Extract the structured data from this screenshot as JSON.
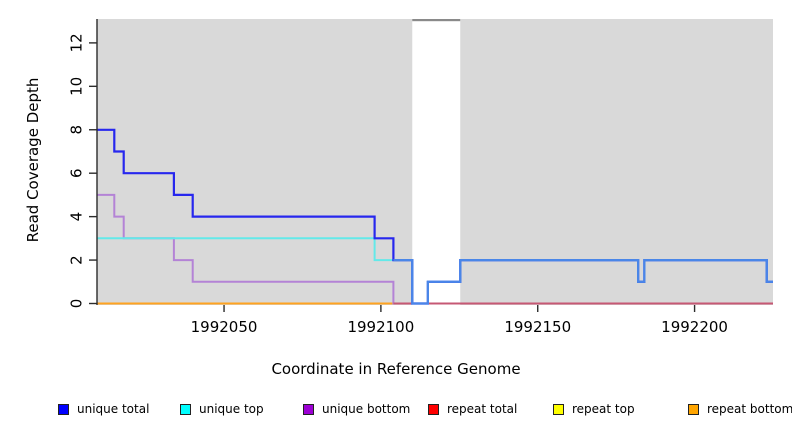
{
  "figure": {
    "x_axis_title": "Coordinate in Reference Genome",
    "y_axis_title": "Read Coverage Depth"
  },
  "chart_data": {
    "type": "line",
    "subtype": "step",
    "title": "",
    "xlabel": "Coordinate in Reference Genome",
    "ylabel": "Read Coverage Depth",
    "xlim": [
      1992009.5,
      1992225
    ],
    "ylim": [
      0,
      13.1
    ],
    "xticks": [
      1992050,
      1992100,
      1992150,
      1992200
    ],
    "yticks": [
      0,
      2,
      4,
      6,
      8,
      10,
      12
    ],
    "grid": false,
    "plot_bg": "#d9d9d9",
    "legend_position": "bottom",
    "masked_bands": [
      {
        "x0": 1992110,
        "x1": 1992125.3,
        "fill": "#ffffff",
        "top_line_color": "#8a8a8a",
        "note": "white band; clipped coverage marker at top"
      }
    ],
    "series": [
      {
        "name": "unique total",
        "legend_fill": "#0000ff",
        "line_color": "#2727ee",
        "steps": [
          [
            1992009.5,
            8
          ],
          [
            1992015,
            7
          ],
          [
            1992018,
            6
          ],
          [
            1992034,
            5
          ],
          [
            1992040,
            4
          ],
          [
            1992098,
            3
          ],
          [
            1992104,
            2
          ],
          [
            1992110,
            0
          ],
          [
            1992115,
            1
          ],
          [
            1992125.3,
            2
          ],
          [
            1992182,
            1
          ],
          [
            1992184,
            2
          ],
          [
            1992223,
            1
          ],
          [
            1992225,
            1
          ]
        ]
      },
      {
        "name": "unique top",
        "legend_fill": "#00ffff",
        "line_color": "#63e9e9",
        "steps": [
          [
            1992009.5,
            3
          ],
          [
            1992098,
            2
          ],
          [
            1992104,
            2
          ],
          [
            1992110,
            0
          ],
          [
            1992115,
            1
          ],
          [
            1992125.3,
            2
          ],
          [
            1992182,
            1
          ],
          [
            1992184,
            2
          ],
          [
            1992223,
            1
          ],
          [
            1992225,
            1
          ]
        ]
      },
      {
        "name": "unique bottom",
        "legend_fill": "#9c00d4",
        "line_color": "#b483d6",
        "steps": [
          [
            1992009.5,
            5
          ],
          [
            1992015,
            4
          ],
          [
            1992018,
            3
          ],
          [
            1992034,
            2
          ],
          [
            1992040,
            1
          ],
          [
            1992104,
            0
          ],
          [
            1992225,
            0
          ]
        ]
      },
      {
        "name": "repeat total",
        "legend_fill": "#ff0000",
        "line_color": "#cc2222",
        "steps": [
          [
            1992009.5,
            0
          ],
          [
            1992225,
            0
          ]
        ]
      },
      {
        "name": "repeat top",
        "legend_fill": "#ffff00",
        "line_color": "#e6e600",
        "steps": [
          [
            1992009.5,
            0
          ],
          [
            1992225,
            0
          ]
        ]
      },
      {
        "name": "repeat bottom",
        "legend_fill": "#ffa500",
        "line_color": "#ffa320",
        "steps": [
          [
            1992009.5,
            0
          ],
          [
            1992225,
            0
          ]
        ]
      }
    ],
    "overlap_overlays": [
      {
        "name": "unique-bottom-over-repeat-bottom blend",
        "line_color": "#c65874",
        "steps": [
          [
            1992104,
            0
          ],
          [
            1992225,
            0
          ]
        ]
      },
      {
        "name": "unique-total-over-unique-top blend",
        "line_color": "#4a86e8",
        "steps": [
          [
            1992104,
            2
          ],
          [
            1992110,
            0
          ],
          [
            1992115,
            1
          ],
          [
            1992125.3,
            2
          ],
          [
            1992182,
            1
          ],
          [
            1992184,
            2
          ],
          [
            1992223,
            1
          ],
          [
            1992225,
            1
          ]
        ]
      }
    ],
    "legend": [
      {
        "label": "unique total",
        "fill": "#0000ff"
      },
      {
        "label": "unique top",
        "fill": "#00ffff"
      },
      {
        "label": "unique bottom",
        "fill": "#9c00d4"
      },
      {
        "label": "repeat total",
        "fill": "#ff0000"
      },
      {
        "label": "repeat top",
        "fill": "#ffff00"
      },
      {
        "label": "repeat bottom",
        "fill": "#ffa500"
      }
    ]
  }
}
